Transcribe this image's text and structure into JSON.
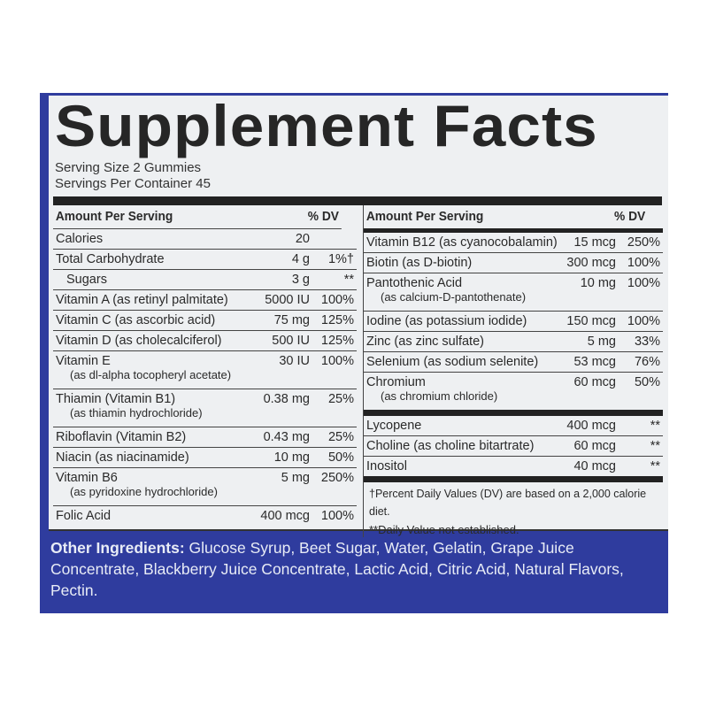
{
  "title": "Supplement Facts",
  "serving_size": "Serving Size 2 Gummies",
  "servings_per_container": "Servings Per Container 45",
  "header": {
    "amount": "Amount Per Serving",
    "dv": "% DV"
  },
  "left_rows": [
    {
      "name": "Calories",
      "amount": "20",
      "dv": ""
    },
    {
      "name": "Total Carbohydrate",
      "amount": "4 g",
      "dv": "1%†"
    },
    {
      "name": "Sugars",
      "amount": "3 g",
      "dv": "**",
      "indent": true
    },
    {
      "name": "Vitamin A (as retinyl palmitate)",
      "amount": "5000 IU",
      "dv": "100%"
    },
    {
      "name": "Vitamin C (as ascorbic acid)",
      "amount": "75 mg",
      "dv": "125%"
    },
    {
      "name": "Vitamin D (as cholecalciferol)",
      "amount": "500 IU",
      "dv": "125%"
    },
    {
      "name": "Vitamin E",
      "sub": "(as dl-alpha tocopheryl acetate)",
      "amount": "30 IU",
      "dv": "100%"
    },
    {
      "name": "Thiamin (Vitamin B1)",
      "sub": "(as thiamin hydrochloride)",
      "amount": "0.38 mg",
      "dv": "25%"
    },
    {
      "name": "Riboflavin (Vitamin B2)",
      "amount": "0.43 mg",
      "dv": "25%"
    },
    {
      "name": "Niacin (as niacinamide)",
      "amount": "10 mg",
      "dv": "50%"
    },
    {
      "name": "Vitamin B6",
      "sub": "(as pyridoxine hydrochloride)",
      "amount": "5 mg",
      "dv": "250%"
    },
    {
      "name": "Folic Acid",
      "amount": "400 mcg",
      "dv": "100%"
    }
  ],
  "right_rows": [
    {
      "name": "Vitamin B12 (as cyanocobalamin)",
      "amount": "15 mcg",
      "dv": "250%"
    },
    {
      "name": "Biotin (as D-biotin)",
      "amount": "300 mcg",
      "dv": "100%"
    },
    {
      "name": "Pantothenic Acid",
      "sub": "(as calcium-D-pantothenate)",
      "amount": "10 mg",
      "dv": "100%"
    },
    {
      "name": "Iodine (as potassium iodide)",
      "amount": "150 mcg",
      "dv": "100%"
    },
    {
      "name": "Zinc (as zinc sulfate)",
      "amount": "5 mg",
      "dv": "33%"
    },
    {
      "name": "Selenium (as sodium selenite)",
      "amount": "53 mcg",
      "dv": "76%"
    },
    {
      "name": "Chromium",
      "sub": "(as chromium chloride)",
      "amount": "60 mcg",
      "dv": "50%"
    }
  ],
  "right_rows_2": [
    {
      "name": "Lycopene",
      "amount": "400 mcg",
      "dv": "**"
    },
    {
      "name": "Choline (as choline bitartrate)",
      "amount": "60 mcg",
      "dv": "**"
    },
    {
      "name": "Inositol",
      "amount": "40 mcg",
      "dv": "**"
    }
  ],
  "footnotes": [
    "†Percent Daily Values (DV) are based on a 2,000 calorie diet.",
    "**Daily Value not established."
  ],
  "other_ingredients": {
    "label": "Other Ingredients:",
    "text": " Glucose Syrup, Beet Sugar, Water, Gelatin, Grape Juice Concentrate, Blackberry Juice Concentrate, Lactic Acid, Citric Acid, Natural Flavors, Pectin."
  },
  "colors": {
    "panel": "#2f3c9e",
    "label": "#eef0f2",
    "text": "#2a2a2a"
  }
}
